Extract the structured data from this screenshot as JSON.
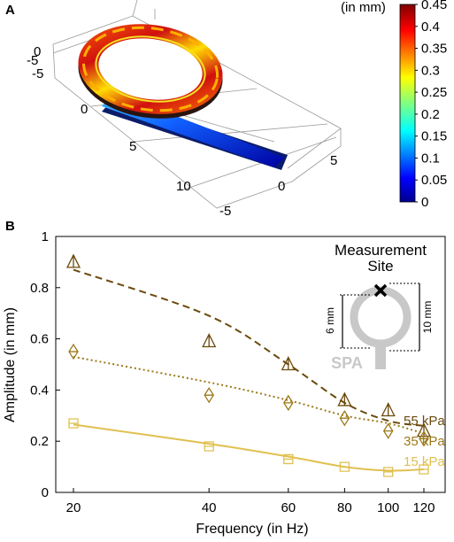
{
  "panel_a": {
    "label": "A",
    "colorbar": {
      "unit_label": "(in mm)",
      "ticks": [
        "0.45",
        "0.4",
        "0.35",
        "0.3",
        "0.25",
        "0.2",
        "0.15",
        "0.1",
        "0.05",
        "0"
      ]
    },
    "axis_ticks": {
      "ring_side": [
        "0",
        "-5"
      ],
      "center": [
        "0",
        "5",
        "10"
      ],
      "bottom": [
        "-5",
        "0",
        "5"
      ]
    }
  },
  "panel_b": {
    "label": "B",
    "inset": {
      "title_line1": "Measurement",
      "title_line2": "Site",
      "left_dim": "6 mm",
      "right_dim": "10 mm",
      "device": "SPA"
    }
  },
  "chart_data": {
    "type": "line",
    "xlabel": "Frequency (in Hz)",
    "ylabel": "Amplitude (in mm)",
    "x_ticks": [
      20,
      40,
      60,
      80,
      100,
      120
    ],
    "y_ticks": [
      "0",
      "0.2",
      "0.4",
      "0.6",
      "0.8",
      "1"
    ],
    "xlim": [
      20,
      125
    ],
    "ylim": [
      0,
      1
    ],
    "x_scale": "log",
    "series": [
      {
        "name": "55 kPa",
        "color": "#6b4a0c",
        "marker": "triangle",
        "line_style": "dashed",
        "x": [
          20,
          40,
          60,
          80,
          100,
          120
        ],
        "y": [
          0.9,
          0.59,
          0.5,
          0.36,
          0.32,
          0.24
        ],
        "fit_y": [
          0.87,
          0.69,
          0.5,
          0.35,
          0.28,
          0.26
        ]
      },
      {
        "name": "35 kPa",
        "color": "#9c7a18",
        "marker": "diamond",
        "line_style": "dotted",
        "x": [
          20,
          40,
          60,
          80,
          100,
          120
        ],
        "y": [
          0.55,
          0.38,
          0.35,
          0.29,
          0.24,
          0.21
        ],
        "fit_y": [
          0.53,
          0.43,
          0.36,
          0.3,
          0.27,
          0.23
        ]
      },
      {
        "name": "15 kPa",
        "color": "#e0c050",
        "marker": "square",
        "line_style": "solid",
        "x": [
          20,
          40,
          60,
          80,
          100,
          120
        ],
        "y": [
          0.27,
          0.18,
          0.13,
          0.1,
          0.08,
          0.09
        ],
        "fit_y": [
          0.265,
          0.19,
          0.14,
          0.1,
          0.085,
          0.09
        ]
      }
    ]
  }
}
